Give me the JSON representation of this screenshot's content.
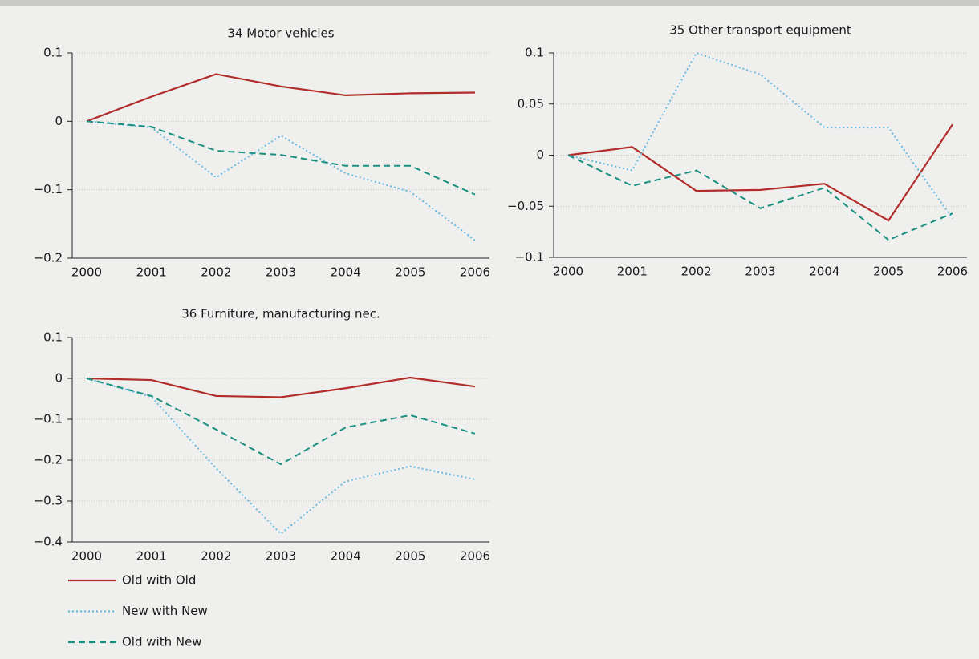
{
  "chart_data": [
    {
      "type": "line",
      "title": "34 Motor vehicles",
      "categories": [
        "2000",
        "2001",
        "2002",
        "2003",
        "2004",
        "2005",
        "2006"
      ],
      "ylim": [
        -0.2,
        0.1
      ],
      "yticks": [
        {
          "value": -0.2,
          "label": "−0.2"
        },
        {
          "value": -0.1,
          "label": "−0.1"
        },
        0,
        0.1
      ],
      "grid": true,
      "series": [
        {
          "name": "Old with Old",
          "color": "#b22d2a",
          "style": "solid",
          "values": [
            0,
            0.036,
            0.069,
            0.051,
            0.038,
            0.041,
            0.042
          ]
        },
        {
          "name": "New with New",
          "color": "#6ab8e0",
          "style": "dotted",
          "values": [
            0,
            -0.009,
            -0.082,
            -0.021,
            -0.076,
            -0.103,
            -0.174
          ]
        },
        {
          "name": "Old with New",
          "color": "#1a9080",
          "style": "dashed",
          "values": [
            0,
            -0.008,
            -0.043,
            -0.049,
            -0.065,
            -0.065,
            -0.107
          ]
        }
      ]
    },
    {
      "type": "line",
      "title": "35 Other transport equipment",
      "categories": [
        "2000",
        "2001",
        "2002",
        "2003",
        "2004",
        "2005",
        "2006"
      ],
      "ylim": [
        -0.1,
        0.1
      ],
      "yticks": [
        {
          "value": -0.1,
          "label": "−0.1"
        },
        {
          "value": -0.05,
          "label": "−0.05"
        },
        0,
        0.05,
        0.1
      ],
      "grid": true,
      "series": [
        {
          "name": "Old with Old",
          "color": "#b22d2a",
          "style": "solid",
          "values": [
            0,
            0.008,
            -0.035,
            -0.034,
            -0.028,
            -0.064,
            0.03
          ]
        },
        {
          "name": "New with New",
          "color": "#6ab8e0",
          "style": "dotted",
          "values": [
            0,
            -0.015,
            0.1,
            0.079,
            0.027,
            0.027,
            -0.062
          ]
        },
        {
          "name": "Old with New",
          "color": "#1a9080",
          "style": "dashed",
          "values": [
            0,
            -0.03,
            -0.015,
            -0.052,
            -0.032,
            -0.083,
            -0.057
          ]
        }
      ]
    },
    {
      "type": "line",
      "title": "36 Furniture, manufacturing nec.",
      "categories": [
        "2000",
        "2001",
        "2002",
        "2003",
        "2004",
        "2005",
        "2006"
      ],
      "ylim": [
        -0.4,
        0.1
      ],
      "yticks": [
        {
          "value": -0.4,
          "label": "−0.4"
        },
        {
          "value": -0.3,
          "label": "−0.3"
        },
        {
          "value": -0.2,
          "label": "−0.2"
        },
        {
          "value": -0.1,
          "label": "−0.1"
        },
        0,
        0.1
      ],
      "grid": true,
      "series": [
        {
          "name": "Old with Old",
          "color": "#b22d2a",
          "style": "solid",
          "values": [
            0,
            -0.004,
            -0.043,
            -0.046,
            -0.024,
            0.002,
            -0.02
          ]
        },
        {
          "name": "New with New",
          "color": "#6ab8e0",
          "style": "dotted",
          "values": [
            0,
            -0.045,
            -0.22,
            -0.38,
            -0.252,
            -0.215,
            -0.247
          ]
        },
        {
          "name": "Old with New",
          "color": "#1a9080",
          "style": "dashed",
          "values": [
            0,
            -0.043,
            -0.125,
            -0.21,
            -0.12,
            -0.09,
            -0.135
          ]
        }
      ]
    }
  ]
}
